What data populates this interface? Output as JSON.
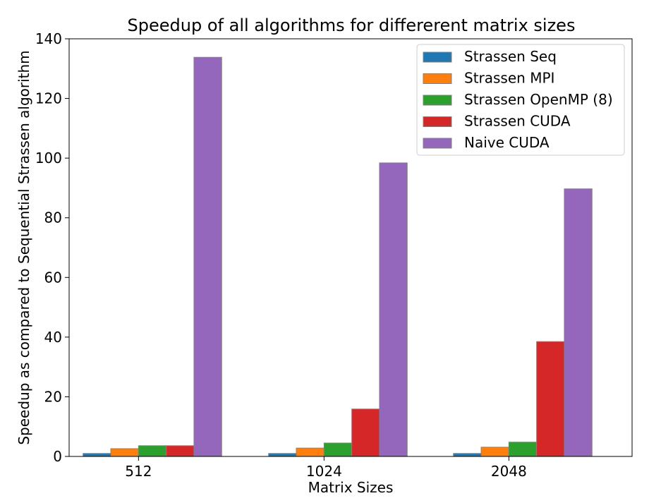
{
  "chart_data": {
    "type": "bar",
    "title": "Speedup of all algorithms for differerent matrix sizes",
    "xlabel": "Matrix Sizes",
    "ylabel": "Speedup as compared to Sequential Strassen algorithm",
    "categories": [
      "512",
      "1024",
      "2048"
    ],
    "ylim": [
      0,
      140
    ],
    "yticks": [
      0,
      20,
      40,
      60,
      80,
      100,
      120,
      140
    ],
    "legend_position": "top-right",
    "grid": false,
    "series": [
      {
        "name": "Strassen Seq",
        "color": "#1f77b4",
        "values": [
          1.0,
          1.0,
          1.0
        ]
      },
      {
        "name": "Strassen MPI",
        "color": "#ff7f0e",
        "values": [
          2.6,
          2.8,
          3.1
        ]
      },
      {
        "name": "Strassen OpenMP (8)",
        "color": "#2ca02c",
        "values": [
          3.6,
          4.5,
          4.8
        ]
      },
      {
        "name": "Strassen CUDA",
        "color": "#d62728",
        "values": [
          3.6,
          15.9,
          38.5
        ]
      },
      {
        "name": "Naive CUDA",
        "color": "#9467bd",
        "values": [
          133.8,
          98.4,
          89.7
        ]
      }
    ]
  }
}
